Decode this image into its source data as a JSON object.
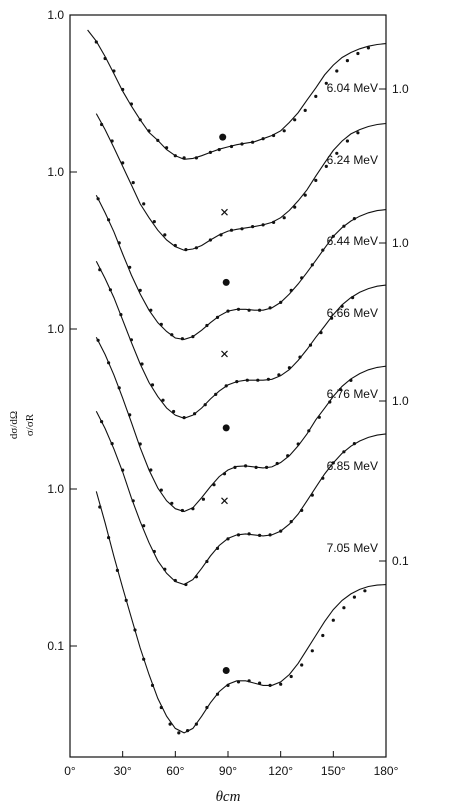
{
  "chart_data": {
    "type": "line",
    "xlabel": "θcm",
    "ylabel": [
      "dσ/dΩ",
      "σ/σR"
    ],
    "xlim": [
      0,
      180
    ],
    "x_ticks": [
      "0°",
      "30°",
      "60°",
      "90°",
      "120°",
      "150°",
      "180°"
    ],
    "y_scale": "log",
    "left_tick_labels": [
      "1.0",
      "1.0",
      "1.0",
      "1.0",
      "0.1"
    ],
    "right_tick_labels": [
      "1.0",
      "1.0",
      "1.0",
      "0.1"
    ],
    "series": [
      {
        "name": "6.04 MeV",
        "curve_x": [
          10,
          15,
          20,
          25,
          30,
          35,
          40,
          45,
          50,
          55,
          60,
          65,
          70,
          75,
          80,
          85,
          90,
          95,
          100,
          105,
          110,
          115,
          120,
          125,
          130,
          135,
          140,
          145,
          150,
          155,
          160,
          165,
          170,
          175,
          180
        ],
        "curve_y": [
          1.0,
          0.85,
          0.68,
          0.53,
          0.41,
          0.33,
          0.27,
          0.225,
          0.2,
          0.175,
          0.16,
          0.152,
          0.154,
          0.16,
          0.168,
          0.176,
          0.182,
          0.188,
          0.192,
          0.196,
          0.205,
          0.215,
          0.23,
          0.26,
          0.3,
          0.36,
          0.43,
          0.52,
          0.6,
          0.67,
          0.72,
          0.76,
          0.79,
          0.81,
          0.82
        ],
        "points_x": [
          15,
          20,
          25,
          30,
          35,
          40,
          45,
          50,
          55,
          60,
          65,
          72,
          80,
          85,
          92,
          98,
          104,
          110,
          116,
          122,
          128,
          134,
          140,
          146,
          152,
          158,
          164,
          170
        ],
        "points_y": [
          0.84,
          0.66,
          0.55,
          0.42,
          0.34,
          0.27,
          0.23,
          0.2,
          0.18,
          0.16,
          0.155,
          0.155,
          0.168,
          0.175,
          0.183,
          0.19,
          0.195,
          0.205,
          0.215,
          0.23,
          0.27,
          0.31,
          0.38,
          0.46,
          0.55,
          0.64,
          0.71,
          0.77
        ],
        "highlight_marker": "dot",
        "highlight_x": 87,
        "highlight_y": 0.21
      },
      {
        "name": "6.24 MeV",
        "curve_x": [
          15,
          20,
          25,
          30,
          35,
          40,
          45,
          50,
          55,
          60,
          65,
          70,
          75,
          80,
          85,
          90,
          95,
          100,
          105,
          110,
          115,
          120,
          125,
          130,
          135,
          140,
          145,
          150,
          155,
          160,
          165,
          170,
          175,
          180
        ],
        "curve_y": [
          0.82,
          0.65,
          0.5,
          0.38,
          0.29,
          0.22,
          0.18,
          0.15,
          0.13,
          0.118,
          0.112,
          0.114,
          0.12,
          0.13,
          0.14,
          0.148,
          0.152,
          0.155,
          0.158,
          0.162,
          0.168,
          0.18,
          0.2,
          0.23,
          0.27,
          0.33,
          0.4,
          0.48,
          0.55,
          0.61,
          0.65,
          0.68,
          0.7,
          0.71
        ],
        "points_x": [
          18,
          24,
          30,
          36,
          42,
          48,
          54,
          60,
          66,
          72,
          80,
          86,
          92,
          98,
          104,
          110,
          116,
          122,
          128,
          134,
          140,
          146,
          152,
          158,
          164
        ],
        "points_y": [
          0.7,
          0.55,
          0.4,
          0.3,
          0.22,
          0.17,
          0.14,
          0.12,
          0.113,
          0.116,
          0.13,
          0.14,
          0.15,
          0.153,
          0.158,
          0.162,
          0.168,
          0.18,
          0.21,
          0.25,
          0.31,
          0.38,
          0.46,
          0.55,
          0.62
        ],
        "highlight_marker": "x",
        "highlight_x": 88,
        "highlight_y": 0.195
      },
      {
        "name": "6.44 MeV",
        "curve_x": [
          15,
          20,
          25,
          30,
          35,
          40,
          45,
          50,
          55,
          60,
          65,
          70,
          75,
          80,
          85,
          90,
          95,
          100,
          105,
          110,
          115,
          120,
          125,
          130,
          135,
          140,
          145,
          150,
          155,
          160,
          165,
          170,
          175,
          180
        ],
        "curve_y": [
          0.8,
          0.62,
          0.47,
          0.34,
          0.25,
          0.19,
          0.15,
          0.125,
          0.11,
          0.1,
          0.098,
          0.102,
          0.112,
          0.125,
          0.138,
          0.148,
          0.152,
          0.152,
          0.15,
          0.15,
          0.155,
          0.168,
          0.19,
          0.22,
          0.26,
          0.31,
          0.37,
          0.44,
          0.5,
          0.55,
          0.59,
          0.62,
          0.64,
          0.65
        ],
        "points_x": [
          16,
          22,
          28,
          34,
          40,
          46,
          52,
          58,
          64,
          70,
          78,
          84,
          90,
          96,
          102,
          108,
          114,
          120,
          126,
          132,
          138,
          144,
          150,
          156,
          162
        ],
        "points_y": [
          0.76,
          0.56,
          0.4,
          0.28,
          0.2,
          0.15,
          0.122,
          0.105,
          0.099,
          0.102,
          0.12,
          0.135,
          0.148,
          0.152,
          0.15,
          0.15,
          0.155,
          0.168,
          0.2,
          0.24,
          0.29,
          0.36,
          0.44,
          0.51,
          0.57
        ],
        "highlight_marker": "dot",
        "highlight_x": 89,
        "highlight_y": 0.225
      },
      {
        "name": "6.66 MeV",
        "curve_x": [
          15,
          20,
          25,
          30,
          35,
          40,
          45,
          50,
          55,
          60,
          65,
          70,
          75,
          80,
          85,
          90,
          95,
          100,
          105,
          110,
          115,
          120,
          125,
          130,
          135,
          140,
          145,
          150,
          155,
          160,
          165,
          170,
          175,
          180
        ],
        "curve_y": [
          0.85,
          0.66,
          0.5,
          0.36,
          0.26,
          0.19,
          0.145,
          0.118,
          0.1,
          0.09,
          0.086,
          0.09,
          0.1,
          0.114,
          0.128,
          0.14,
          0.147,
          0.15,
          0.15,
          0.15,
          0.152,
          0.16,
          0.175,
          0.2,
          0.235,
          0.28,
          0.33,
          0.39,
          0.45,
          0.5,
          0.54,
          0.57,
          0.59,
          0.6
        ],
        "points_x": [
          17,
          23,
          29,
          35,
          41,
          47,
          53,
          59,
          65,
          71,
          77,
          83,
          89,
          95,
          101,
          107,
          113,
          119,
          125,
          131,
          137,
          143,
          149,
          155,
          161
        ],
        "points_y": [
          0.75,
          0.56,
          0.39,
          0.27,
          0.19,
          0.14,
          0.112,
          0.095,
          0.087,
          0.092,
          0.105,
          0.122,
          0.138,
          0.147,
          0.15,
          0.15,
          0.152,
          0.162,
          0.18,
          0.21,
          0.25,
          0.3,
          0.37,
          0.44,
          0.5
        ],
        "highlight_marker": "x",
        "highlight_x": 88,
        "highlight_y": 0.22
      },
      {
        "name": "6.76 MeV",
        "curve_x": [
          15,
          20,
          25,
          30,
          35,
          40,
          45,
          50,
          55,
          60,
          65,
          70,
          75,
          80,
          85,
          90,
          95,
          100,
          105,
          110,
          115,
          120,
          125,
          130,
          135,
          140,
          145,
          150,
          155,
          160,
          165,
          170,
          175,
          180
        ],
        "curve_y": [
          0.9,
          0.7,
          0.52,
          0.37,
          0.26,
          0.18,
          0.13,
          0.1,
          0.083,
          0.074,
          0.071,
          0.075,
          0.087,
          0.102,
          0.118,
          0.13,
          0.137,
          0.138,
          0.136,
          0.134,
          0.136,
          0.145,
          0.16,
          0.185,
          0.22,
          0.27,
          0.32,
          0.38,
          0.44,
          0.49,
          0.53,
          0.56,
          0.58,
          0.59
        ],
        "points_x": [
          16,
          22,
          28,
          34,
          40,
          46,
          52,
          58,
          64,
          70,
          76,
          82,
          88,
          94,
          100,
          106,
          112,
          118,
          124,
          130,
          136,
          142,
          148,
          154,
          160
        ],
        "points_y": [
          0.86,
          0.62,
          0.43,
          0.29,
          0.19,
          0.13,
          0.097,
          0.08,
          0.072,
          0.074,
          0.085,
          0.105,
          0.123,
          0.135,
          0.138,
          0.135,
          0.135,
          0.143,
          0.16,
          0.19,
          0.23,
          0.28,
          0.35,
          0.42,
          0.48
        ],
        "highlight_marker": "dot",
        "highlight_x": 89,
        "highlight_y": 0.24
      },
      {
        "name": "6.85 MeV",
        "curve_x": [
          15,
          20,
          25,
          30,
          35,
          40,
          45,
          50,
          55,
          60,
          65,
          70,
          75,
          80,
          85,
          90,
          95,
          100,
          105,
          110,
          115,
          120,
          125,
          130,
          135,
          140,
          145,
          150,
          155,
          160,
          165,
          170,
          175,
          180
        ],
        "curve_y": [
          0.85,
          0.66,
          0.49,
          0.35,
          0.24,
          0.17,
          0.125,
          0.096,
          0.08,
          0.071,
          0.068,
          0.073,
          0.086,
          0.103,
          0.12,
          0.133,
          0.14,
          0.142,
          0.14,
          0.138,
          0.14,
          0.148,
          0.164,
          0.19,
          0.23,
          0.28,
          0.34,
          0.4,
          0.46,
          0.51,
          0.55,
          0.58,
          0.6,
          0.61
        ],
        "points_x": [
          18,
          24,
          30,
          36,
          42,
          48,
          54,
          60,
          66,
          72,
          78,
          84,
          90,
          96,
          102,
          108,
          114,
          120,
          126,
          132,
          138,
          144,
          150,
          156,
          162
        ],
        "points_y": [
          0.73,
          0.53,
          0.36,
          0.23,
          0.16,
          0.11,
          0.085,
          0.072,
          0.068,
          0.076,
          0.095,
          0.115,
          0.132,
          0.14,
          0.142,
          0.139,
          0.14,
          0.148,
          0.17,
          0.2,
          0.25,
          0.32,
          0.4,
          0.47,
          0.53
        ],
        "highlight_marker": "x",
        "highlight_x": 88,
        "highlight_y": 0.23
      },
      {
        "name": "7.05 MeV",
        "curve_x": [
          15,
          20,
          25,
          30,
          35,
          40,
          45,
          50,
          55,
          60,
          65,
          70,
          75,
          80,
          85,
          90,
          95,
          100,
          105,
          110,
          115,
          120,
          125,
          130,
          135,
          140,
          145,
          150,
          155,
          160,
          165,
          170,
          175,
          180
        ],
        "curve_y": [
          0.98,
          0.62,
          0.38,
          0.24,
          0.155,
          0.1,
          0.068,
          0.048,
          0.037,
          0.031,
          0.029,
          0.031,
          0.037,
          0.045,
          0.053,
          0.059,
          0.062,
          0.062,
          0.06,
          0.058,
          0.058,
          0.061,
          0.068,
          0.08,
          0.098,
          0.12,
          0.147,
          0.175,
          0.2,
          0.22,
          0.235,
          0.245,
          0.25,
          0.252
        ],
        "points_x": [
          17,
          22,
          27,
          32,
          37,
          42,
          47,
          52,
          57,
          62,
          67,
          72,
          78,
          84,
          90,
          96,
          102,
          108,
          114,
          120,
          126,
          132,
          138,
          144,
          150,
          156,
          162,
          168
        ],
        "points_y": [
          0.78,
          0.5,
          0.31,
          0.2,
          0.13,
          0.085,
          0.058,
          0.042,
          0.033,
          0.029,
          0.03,
          0.033,
          0.042,
          0.051,
          0.058,
          0.061,
          0.062,
          0.06,
          0.058,
          0.059,
          0.066,
          0.078,
          0.096,
          0.12,
          0.15,
          0.18,
          0.21,
          0.23
        ],
        "highlight_marker": "dot",
        "highlight_x": 89,
        "highlight_y": 0.072
      }
    ]
  }
}
